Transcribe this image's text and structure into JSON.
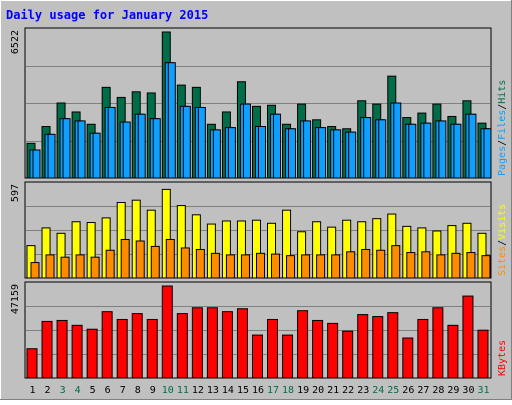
{
  "title": "Daily usage for January 2015",
  "colors": {
    "background": "#c0c0c0",
    "title": "#0000ff",
    "hits": "#006d48",
    "files": "#00a0ff",
    "pages": "#0f9fff",
    "visits": "#ffff00",
    "sites": "#ff8c00",
    "kbytes": "#ff0000",
    "weekend_day": "#006d48",
    "weekday": "#000000"
  },
  "chart_data": [
    {
      "type": "bar",
      "panel": "hits-files-pages",
      "ymax_label": "6522",
      "ylim": [
        0,
        6522
      ],
      "axis_label_parts": [
        "Pages",
        "/",
        "Files",
        "/",
        "Hits"
      ],
      "categories": [
        "1",
        "2",
        "3",
        "4",
        "5",
        "6",
        "7",
        "8",
        "9",
        "10",
        "11",
        "12",
        "13",
        "14",
        "15",
        "16",
        "17",
        "18",
        "19",
        "20",
        "21",
        "22",
        "23",
        "24",
        "25",
        "26",
        "27",
        "28",
        "29",
        "30",
        "31"
      ],
      "series": [
        {
          "name": "Hits",
          "values": [
            1550,
            2300,
            3350,
            2950,
            2400,
            4050,
            3600,
            3850,
            3800,
            6522,
            4150,
            4050,
            2400,
            2950,
            4300,
            3200,
            3250,
            2400,
            3300,
            2600,
            2300,
            2200,
            3450,
            3300,
            4550,
            2700,
            2900,
            3300,
            2750,
            3450,
            2450
          ]
        },
        {
          "name": "Files",
          "values": [
            1250,
            1950,
            2650,
            2550,
            2000,
            3150,
            2500,
            2850,
            2650,
            5150,
            3200,
            3150,
            2150,
            2250,
            3300,
            2300,
            2850,
            2200,
            2550,
            2250,
            2150,
            2050,
            2700,
            2600,
            3350,
            2400,
            2450,
            2550,
            2400,
            2850,
            2200
          ]
        },
        {
          "name": "Pages",
          "values": [
            1250,
            1950,
            2650,
            2550,
            2000,
            3150,
            2500,
            2850,
            2650,
            5150,
            3200,
            3150,
            2150,
            2250,
            3300,
            2300,
            2850,
            2200,
            2550,
            2250,
            2150,
            2050,
            2700,
            2600,
            3350,
            2400,
            2450,
            2550,
            2400,
            2850,
            2200
          ]
        }
      ]
    },
    {
      "type": "bar",
      "panel": "visits-sites",
      "ymax_label": "597",
      "ylim": [
        0,
        597
      ],
      "axis_label_parts": [
        "Sites",
        "/",
        "Visits"
      ],
      "categories": [
        "1",
        "2",
        "3",
        "4",
        "5",
        "6",
        "7",
        "8",
        "9",
        "10",
        "11",
        "12",
        "13",
        "14",
        "15",
        "16",
        "17",
        "18",
        "19",
        "20",
        "21",
        "22",
        "23",
        "24",
        "25",
        "26",
        "27",
        "28",
        "29",
        "30",
        "31"
      ],
      "series": [
        {
          "name": "Visits",
          "values": [
            210,
            325,
            290,
            365,
            360,
            390,
            490,
            505,
            440,
            575,
            470,
            410,
            350,
            370,
            370,
            375,
            355,
            440,
            300,
            365,
            330,
            375,
            365,
            385,
            415,
            335,
            325,
            305,
            340,
            355,
            290
          ]
        },
        {
          "name": "Sites",
          "values": [
            100,
            150,
            135,
            150,
            135,
            180,
            250,
            240,
            205,
            250,
            195,
            185,
            160,
            150,
            150,
            160,
            155,
            145,
            150,
            150,
            150,
            170,
            185,
            180,
            210,
            165,
            170,
            150,
            160,
            165,
            145
          ]
        }
      ]
    },
    {
      "type": "bar",
      "panel": "kbytes",
      "ymax_label": "47159",
      "ylim": [
        0,
        47159
      ],
      "axis_label_parts": [
        "KBytes"
      ],
      "categories": [
        "1",
        "2",
        "3",
        "4",
        "5",
        "6",
        "7",
        "8",
        "9",
        "10",
        "11",
        "12",
        "13",
        "14",
        "15",
        "16",
        "17",
        "18",
        "19",
        "20",
        "21",
        "22",
        "23",
        "24",
        "25",
        "26",
        "27",
        "28",
        "29",
        "30",
        "31"
      ],
      "series": [
        {
          "name": "KBytes",
          "values": [
            15000,
            29000,
            29500,
            27000,
            25000,
            34000,
            30000,
            33000,
            30000,
            47159,
            33000,
            36000,
            36000,
            34000,
            35500,
            22000,
            30000,
            22000,
            34500,
            29500,
            28000,
            24000,
            32500,
            31500,
            33500,
            20500,
            30000,
            36000,
            27000,
            42000,
            24500
          ]
        }
      ]
    }
  ]
}
